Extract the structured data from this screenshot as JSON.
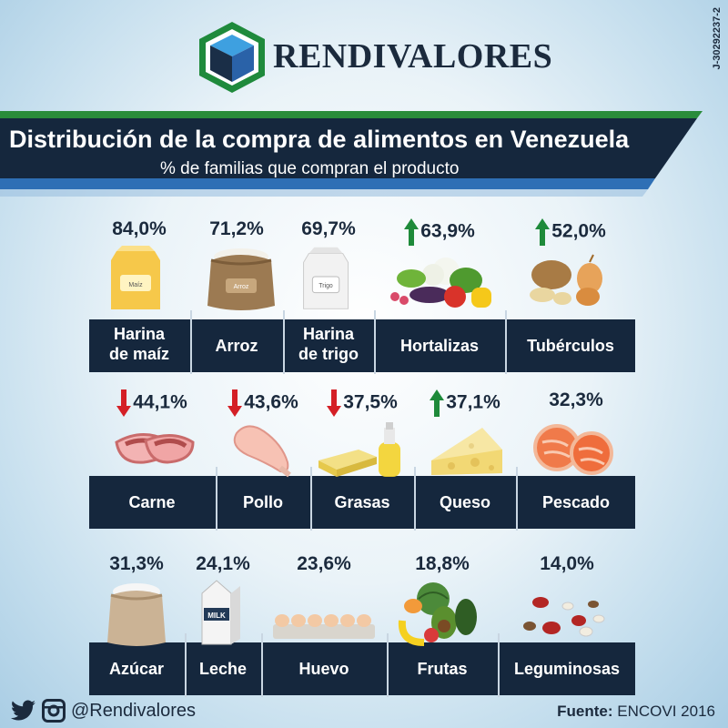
{
  "brand": {
    "name": "RENDIVALORES",
    "rif": "J-30292237-2"
  },
  "header": {
    "title": "Distribución de la compra de alimentos en Venezuela",
    "subtitle": "% de familias que compran el producto"
  },
  "items": [
    {
      "name": "Harina de maíz",
      "lines": [
        "Harina",
        "de maíz"
      ],
      "percent": "84,0%",
      "trend": "none",
      "icon": "corn-flour-bag-icon",
      "pkg_label": "Maíz"
    },
    {
      "name": "Arroz",
      "lines": [
        "Arroz"
      ],
      "percent": "71,2%",
      "trend": "none",
      "icon": "rice-sack-icon",
      "pkg_label": "Arroz"
    },
    {
      "name": "Harina de trigo",
      "lines": [
        "Harina",
        "de trigo"
      ],
      "percent": "69,7%",
      "trend": "none",
      "icon": "wheat-flour-bag-icon",
      "pkg_label": "Trigo"
    },
    {
      "name": "Hortalizas",
      "lines": [
        "Hortalizas"
      ],
      "percent": "63,9%",
      "trend": "up",
      "icon": "vegetables-icon"
    },
    {
      "name": "Tubérculos",
      "lines": [
        "Tubérculos"
      ],
      "percent": "52,0%",
      "trend": "up",
      "icon": "tubers-icon"
    },
    {
      "name": "Carne",
      "lines": [
        "Carne"
      ],
      "percent": "44,1%",
      "trend": "down",
      "icon": "meat-icon"
    },
    {
      "name": "Pollo",
      "lines": [
        "Pollo"
      ],
      "percent": "43,6%",
      "trend": "down",
      "icon": "chicken-icon"
    },
    {
      "name": "Grasas",
      "lines": [
        "Grasas"
      ],
      "percent": "37,5%",
      "trend": "down",
      "icon": "fats-icon"
    },
    {
      "name": "Queso",
      "lines": [
        "Queso"
      ],
      "percent": "37,1%",
      "trend": "up",
      "icon": "cheese-icon"
    },
    {
      "name": "Pescado",
      "lines": [
        "Pescado"
      ],
      "percent": "32,3%",
      "trend": "none",
      "icon": "fish-icon"
    },
    {
      "name": "Azúcar",
      "lines": [
        "Azúcar"
      ],
      "percent": "31,3%",
      "trend": "none",
      "icon": "sugar-sack-icon"
    },
    {
      "name": "Leche",
      "lines": [
        "Leche"
      ],
      "percent": "24,1%",
      "trend": "none",
      "icon": "milk-carton-icon",
      "pkg_label": "MILK"
    },
    {
      "name": "Huevo",
      "lines": [
        "Huevo"
      ],
      "percent": "23,6%",
      "trend": "none",
      "icon": "egg-carton-icon"
    },
    {
      "name": "Frutas",
      "lines": [
        "Frutas"
      ],
      "percent": "18,8%",
      "trend": "none",
      "icon": "fruits-icon"
    },
    {
      "name": "Leguminosas",
      "lines": [
        "Leguminosas"
      ],
      "percent": "14,0%",
      "trend": "none",
      "icon": "legumes-icon"
    }
  ],
  "footer": {
    "handle": "@Rendivalores",
    "source_label": "Fuente:",
    "source_value": "ENCOVI 2016"
  },
  "colors": {
    "navy": "#15273d",
    "green": "#2a8c3a",
    "blue": "#2e6fb5",
    "arrow_up": "#1e8a3a",
    "arrow_down": "#d41f26"
  }
}
